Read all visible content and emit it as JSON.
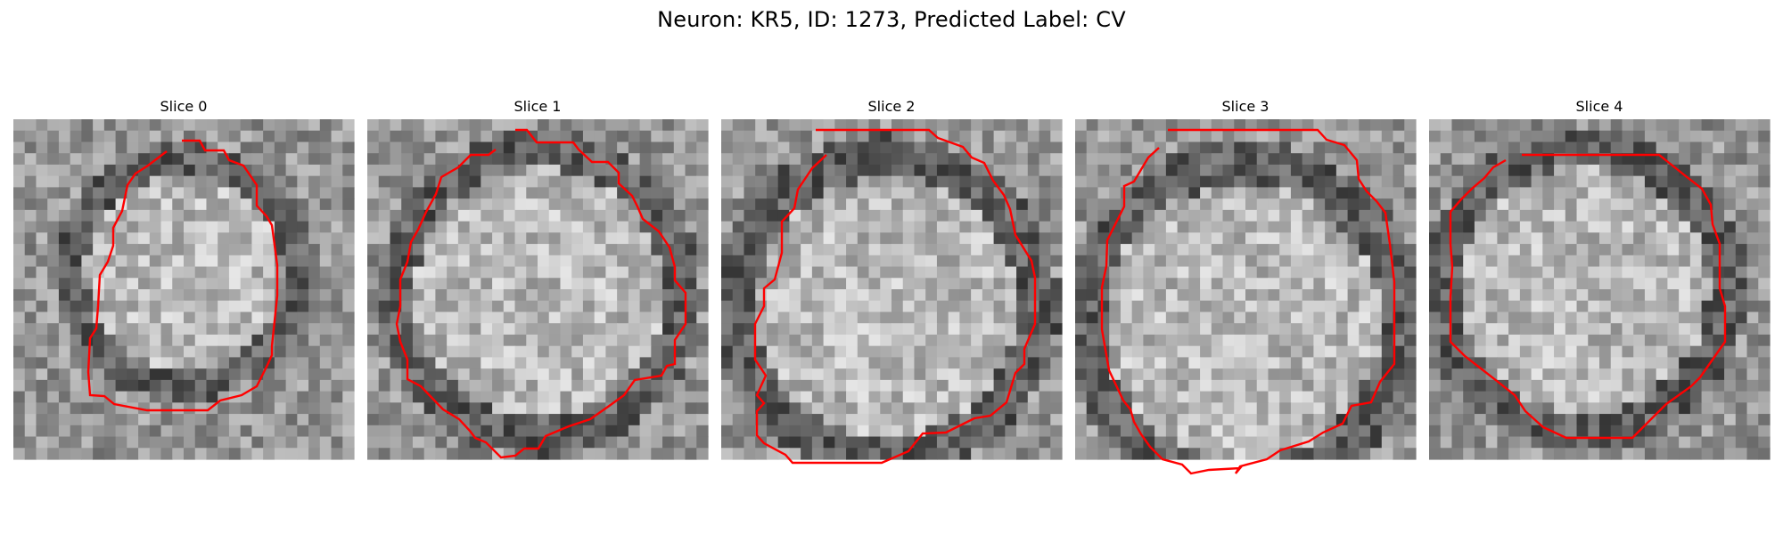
{
  "figure": {
    "title": "Neuron: KR5, ID: 1273, Predicted Label: CV",
    "contour_color": "#ff0000",
    "image_colormap": "gray"
  },
  "panels": [
    {
      "title": "Slice 0"
    },
    {
      "title": "Slice 1"
    },
    {
      "title": "Slice 2"
    },
    {
      "title": "Slice 3"
    },
    {
      "title": "Slice 4"
    }
  ]
}
